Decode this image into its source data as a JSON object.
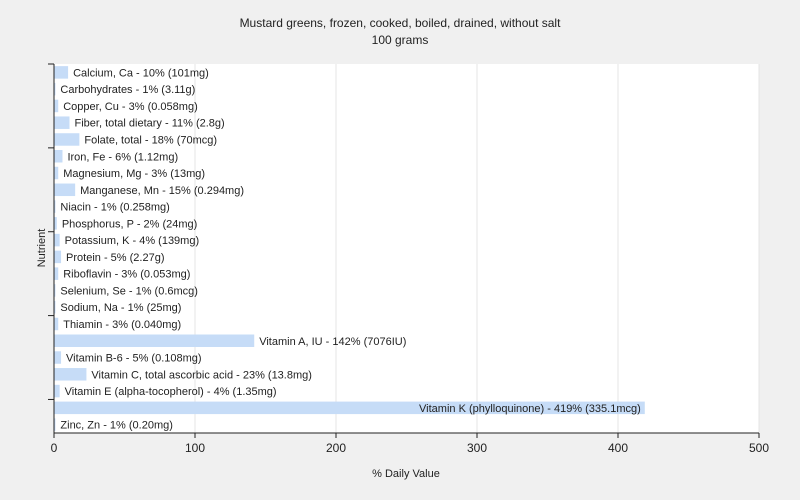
{
  "chart_data": {
    "type": "bar",
    "orientation": "horizontal",
    "title": "Mustard greens, frozen, cooked, boiled, drained, without salt",
    "subtitle": "100 grams",
    "xlabel": "% Daily Value",
    "ylabel": "Nutrient",
    "xlim": [
      0,
      500
    ],
    "xticks": [
      "0",
      "100",
      "200",
      "300",
      "400",
      "500"
    ],
    "grid": true,
    "bar_color": "#c6dcf7",
    "categories": [
      "Calcium, Ca",
      "Carbohydrates",
      "Copper, Cu",
      "Fiber, total dietary",
      "Folate, total",
      "Iron, Fe",
      "Magnesium, Mg",
      "Manganese, Mn",
      "Niacin",
      "Phosphorus, P",
      "Potassium, K",
      "Protein",
      "Riboflavin",
      "Selenium, Se",
      "Sodium, Na",
      "Thiamin",
      "Vitamin A, IU",
      "Vitamin B-6",
      "Vitamin C, total ascorbic acid",
      "Vitamin E (alpha-tocopherol)",
      "Vitamin K (phylloquinone)",
      "Zinc, Zn"
    ],
    "values": [
      10,
      1,
      3,
      11,
      18,
      6,
      3,
      15,
      1,
      2,
      4,
      5,
      3,
      1,
      1,
      3,
      142,
      5,
      23,
      4,
      419,
      1
    ],
    "labels": [
      "Calcium, Ca - 10% (101mg)",
      "Carbohydrates - 1% (3.11g)",
      "Copper, Cu - 3% (0.058mg)",
      "Fiber, total dietary - 11% (2.8g)",
      "Folate, total - 18% (70mcg)",
      "Iron, Fe - 6% (1.12mg)",
      "Magnesium, Mg - 3% (13mg)",
      "Manganese, Mn - 15% (0.294mg)",
      "Niacin - 1% (0.258mg)",
      "Phosphorus, P - 2% (24mg)",
      "Potassium, K - 4% (139mg)",
      "Protein - 5% (2.27g)",
      "Riboflavin - 3% (0.053mg)",
      "Selenium, Se - 1% (0.6mcg)",
      "Sodium, Na - 1% (25mg)",
      "Thiamin - 3% (0.040mg)",
      "Vitamin A, IU - 142% (7076IU)",
      "Vitamin B-6 - 5% (0.108mg)",
      "Vitamin C, total ascorbic acid - 23% (13.8mg)",
      "Vitamin E (alpha-tocopherol) - 4% (1.35mg)",
      "Vitamin K (phylloquinone) - 419% (335.1mcg)",
      "Zinc, Zn - 1% (0.20mg)"
    ]
  }
}
